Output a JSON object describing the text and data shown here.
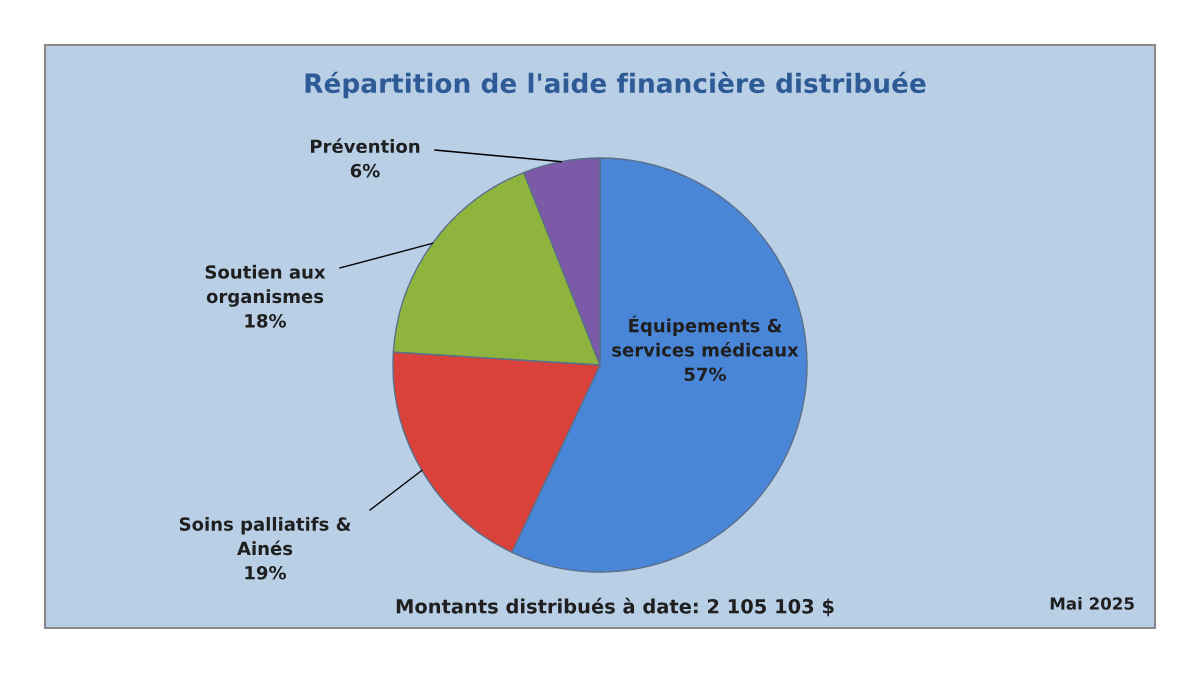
{
  "chart_data": {
    "type": "pie",
    "title": "Répartition de l'aide financière distribuée",
    "categories": [
      "Équipements &\nservices médicaux",
      "Soins palliatifs &\nAinés",
      "Soutien aux\norganismes",
      "Prévention"
    ],
    "values": [
      57,
      19,
      18,
      6
    ],
    "value_labels": [
      "57%",
      "19%",
      "18%",
      "6%"
    ],
    "colors": [
      "#4a86d8",
      "#d9413a",
      "#8fb43e",
      "#7d5aa8"
    ],
    "legend": false,
    "annotations": [
      "Montants distribués à date: 2 105 103 $",
      "Mai 2025"
    ]
  }
}
